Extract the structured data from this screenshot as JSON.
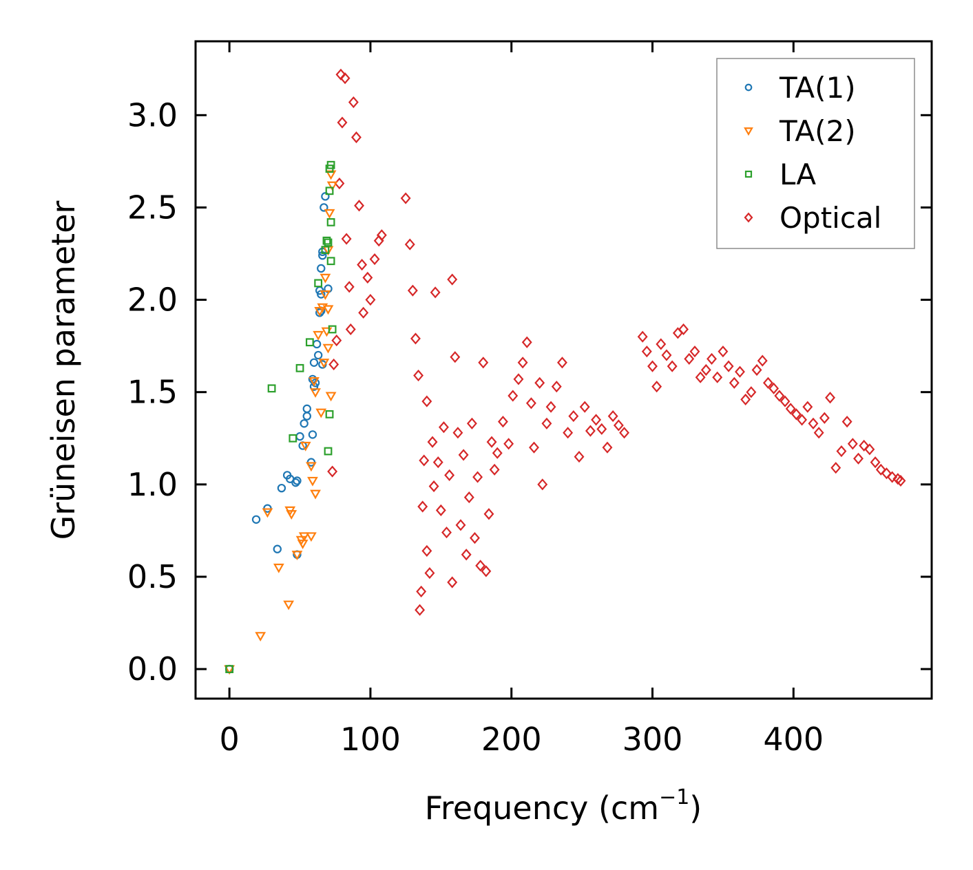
{
  "chart_data": {
    "type": "scatter",
    "title": "",
    "xlabel_main": "Frequency (cm",
    "xlabel_sup": "−1",
    "xlabel_tail": ")",
    "ylabel": "Grüneisen parameter",
    "xlim": [
      -24,
      498
    ],
    "ylim": [
      -0.16,
      3.4
    ],
    "x_ticks": [
      0,
      100,
      200,
      300,
      400
    ],
    "x_tick_labels": [
      "0",
      "100",
      "200",
      "300",
      "400"
    ],
    "y_ticks": [
      0.0,
      0.5,
      1.0,
      1.5,
      2.0,
      2.5,
      3.0
    ],
    "y_tick_labels": [
      "0.0",
      "0.5",
      "1.0",
      "1.5",
      "2.0",
      "2.5",
      "3.0"
    ],
    "grid": false,
    "legend_position": "top-right",
    "series": [
      {
        "name": "TA(1)",
        "marker": "circle",
        "color": "#1f77b4",
        "points": [
          [
            0,
            0
          ],
          [
            19,
            0.81
          ],
          [
            27,
            0.87
          ],
          [
            34,
            0.65
          ],
          [
            37,
            0.98
          ],
          [
            41,
            1.05
          ],
          [
            43,
            1.03
          ],
          [
            47,
            1.01
          ],
          [
            48,
            1.02
          ],
          [
            48,
            0.62
          ],
          [
            50,
            1.26
          ],
          [
            52,
            1.21
          ],
          [
            53,
            1.33
          ],
          [
            55,
            1.37
          ],
          [
            55,
            1.41
          ],
          [
            58,
            1.12
          ],
          [
            59,
            1.27
          ],
          [
            59,
            1.57
          ],
          [
            60,
            1.53
          ],
          [
            60,
            1.66
          ],
          [
            61,
            1.55
          ],
          [
            62,
            1.76
          ],
          [
            63,
            1.7
          ],
          [
            64,
            1.93
          ],
          [
            64,
            2.05
          ],
          [
            65,
            2.03
          ],
          [
            65,
            1.94
          ],
          [
            65,
            2.17
          ],
          [
            66,
            2.24
          ],
          [
            66,
            1.65
          ],
          [
            66,
            2.26
          ],
          [
            67,
            2.5
          ],
          [
            68,
            2.56
          ],
          [
            70,
            2.06
          ]
        ]
      },
      {
        "name": "TA(2)",
        "marker": "triangle-down",
        "color": "#ff7f0e",
        "points": [
          [
            0,
            0
          ],
          [
            22,
            0.18
          ],
          [
            27,
            0.85
          ],
          [
            35,
            0.55
          ],
          [
            42,
            0.35
          ],
          [
            43,
            0.86
          ],
          [
            44,
            0.84
          ],
          [
            48,
            0.62
          ],
          [
            51,
            0.7
          ],
          [
            52,
            0.68
          ],
          [
            53,
            0.72
          ],
          [
            54,
            1.21
          ],
          [
            58,
            0.72
          ],
          [
            58,
            1.1
          ],
          [
            59,
            1.02
          ],
          [
            61,
            0.95
          ],
          [
            60,
            1.56
          ],
          [
            61,
            1.5
          ],
          [
            63,
            1.81
          ],
          [
            64,
            1.94
          ],
          [
            65,
            1.39
          ],
          [
            66,
            1.96
          ],
          [
            67,
            1.66
          ],
          [
            68,
            2.12
          ],
          [
            68,
            2.03
          ],
          [
            69,
            1.83
          ],
          [
            70,
            2.27
          ],
          [
            70,
            1.74
          ],
          [
            70,
            1.95
          ],
          [
            71,
            2.47
          ],
          [
            72,
            2.68
          ],
          [
            72,
            1.48
          ],
          [
            73,
            2.62
          ]
        ]
      },
      {
        "name": "LA",
        "marker": "square",
        "color": "#2ca02c",
        "points": [
          [
            0,
            0
          ],
          [
            30,
            1.52
          ],
          [
            45,
            1.25
          ],
          [
            50,
            1.63
          ],
          [
            57,
            1.77
          ],
          [
            63,
            2.09
          ],
          [
            68,
            2.27
          ],
          [
            69,
            2.32
          ],
          [
            70,
            2.31
          ],
          [
            70,
            1.18
          ],
          [
            71,
            2.59
          ],
          [
            71,
            1.38
          ],
          [
            71,
            2.71
          ],
          [
            72,
            2.73
          ],
          [
            72,
            2.42
          ],
          [
            72,
            2.21
          ],
          [
            73,
            1.84
          ]
        ]
      },
      {
        "name": "Optical",
        "marker": "diamond",
        "color": "#d62728",
        "points": [
          [
            73,
            1.07
          ],
          [
            74,
            1.65
          ],
          [
            76,
            1.78
          ],
          [
            78,
            2.63
          ],
          [
            79,
            3.22
          ],
          [
            80,
            2.96
          ],
          [
            82,
            3.2
          ],
          [
            83,
            2.33
          ],
          [
            85,
            2.07
          ],
          [
            86,
            1.84
          ],
          [
            88,
            3.07
          ],
          [
            90,
            2.88
          ],
          [
            92,
            2.51
          ],
          [
            94,
            2.19
          ],
          [
            95,
            1.93
          ],
          [
            98,
            2.12
          ],
          [
            100,
            2.0
          ],
          [
            103,
            2.22
          ],
          [
            106,
            2.32
          ],
          [
            108,
            2.35
          ],
          [
            125,
            2.55
          ],
          [
            128,
            2.3
          ],
          [
            130,
            2.05
          ],
          [
            132,
            1.79
          ],
          [
            134,
            1.59
          ],
          [
            135,
            0.32
          ],
          [
            136,
            0.42
          ],
          [
            137,
            0.88
          ],
          [
            138,
            1.13
          ],
          [
            140,
            0.64
          ],
          [
            140,
            1.45
          ],
          [
            142,
            0.52
          ],
          [
            144,
            1.23
          ],
          [
            145,
            0.99
          ],
          [
            146,
            2.04
          ],
          [
            148,
            1.12
          ],
          [
            150,
            0.86
          ],
          [
            152,
            1.31
          ],
          [
            154,
            0.74
          ],
          [
            156,
            1.05
          ],
          [
            158,
            0.47
          ],
          [
            158,
            2.11
          ],
          [
            160,
            1.69
          ],
          [
            162,
            1.28
          ],
          [
            164,
            0.78
          ],
          [
            166,
            1.16
          ],
          [
            168,
            0.62
          ],
          [
            170,
            0.93
          ],
          [
            172,
            1.33
          ],
          [
            174,
            0.71
          ],
          [
            176,
            1.04
          ],
          [
            178,
            0.56
          ],
          [
            180,
            1.66
          ],
          [
            182,
            0.53
          ],
          [
            184,
            0.84
          ],
          [
            186,
            1.23
          ],
          [
            188,
            1.08
          ],
          [
            190,
            1.17
          ],
          [
            194,
            1.34
          ],
          [
            198,
            1.22
          ],
          [
            201,
            1.48
          ],
          [
            205,
            1.57
          ],
          [
            208,
            1.66
          ],
          [
            211,
            1.77
          ],
          [
            214,
            1.44
          ],
          [
            216,
            1.2
          ],
          [
            220,
            1.55
          ],
          [
            222,
            1.0
          ],
          [
            225,
            1.33
          ],
          [
            228,
            1.42
          ],
          [
            232,
            1.53
          ],
          [
            236,
            1.66
          ],
          [
            240,
            1.28
          ],
          [
            244,
            1.37
          ],
          [
            248,
            1.15
          ],
          [
            252,
            1.42
          ],
          [
            256,
            1.29
          ],
          [
            260,
            1.35
          ],
          [
            264,
            1.3
          ],
          [
            268,
            1.2
          ],
          [
            272,
            1.37
          ],
          [
            276,
            1.32
          ],
          [
            280,
            1.28
          ],
          [
            293,
            1.8
          ],
          [
            296,
            1.72
          ],
          [
            300,
            1.64
          ],
          [
            303,
            1.53
          ],
          [
            306,
            1.76
          ],
          [
            310,
            1.7
          ],
          [
            314,
            1.64
          ],
          [
            318,
            1.82
          ],
          [
            322,
            1.84
          ],
          [
            326,
            1.68
          ],
          [
            330,
            1.72
          ],
          [
            334,
            1.58
          ],
          [
            338,
            1.62
          ],
          [
            342,
            1.68
          ],
          [
            346,
            1.58
          ],
          [
            350,
            1.72
          ],
          [
            354,
            1.64
          ],
          [
            358,
            1.55
          ],
          [
            362,
            1.61
          ],
          [
            366,
            1.46
          ],
          [
            370,
            1.5
          ],
          [
            374,
            1.62
          ],
          [
            378,
            1.67
          ],
          [
            382,
            1.55
          ],
          [
            386,
            1.52
          ],
          [
            390,
            1.48
          ],
          [
            394,
            1.45
          ],
          [
            398,
            1.41
          ],
          [
            402,
            1.38
          ],
          [
            406,
            1.35
          ],
          [
            410,
            1.42
          ],
          [
            414,
            1.33
          ],
          [
            418,
            1.28
          ],
          [
            422,
            1.36
          ],
          [
            426,
            1.47
          ],
          [
            430,
            1.09
          ],
          [
            434,
            1.18
          ],
          [
            438,
            1.34
          ],
          [
            442,
            1.22
          ],
          [
            446,
            1.14
          ],
          [
            450,
            1.21
          ],
          [
            454,
            1.19
          ],
          [
            458,
            1.12
          ],
          [
            462,
            1.08
          ],
          [
            466,
            1.06
          ],
          [
            470,
            1.04
          ],
          [
            474,
            1.03
          ],
          [
            476,
            1.02
          ]
        ]
      }
    ]
  }
}
